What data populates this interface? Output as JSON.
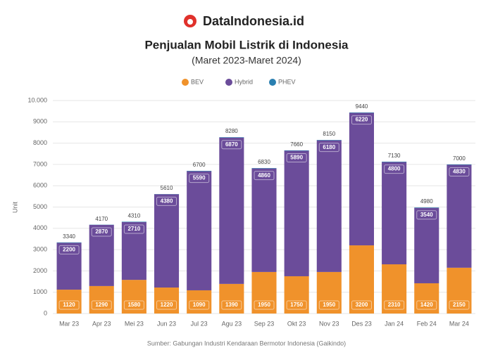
{
  "brand": "DataIndonesia.id",
  "chart_data": {
    "type": "stacked_bar",
    "title": "Penjualan Mobil Listrik di Indonesia",
    "subtitle": "(Maret 2023-Maret 2024)",
    "y_label": "Unit",
    "source": "Sumber: Gabungan Industri Kendaraan Bermotor Indonesia (Gaikindo)",
    "categories": [
      "Mar 23",
      "Apr 23",
      "Mei 23",
      "Jun 23",
      "Jul 23",
      "Agu 23",
      "Sep 23",
      "Okt 23",
      "Nov 23",
      "Des 23",
      "Jan 24",
      "Feb 24",
      "Mar 24"
    ],
    "series": [
      {
        "name": "BEV",
        "color": "#f0922b",
        "values": [
          1120,
          1290,
          1580,
          1220,
          1090,
          1390,
          1950,
          1750,
          1950,
          3200,
          2310,
          1420,
          2150
        ]
      },
      {
        "name": "Hybrid",
        "color": "#6b4c9a",
        "values": [
          2200,
          2870,
          2710,
          4380,
          5590,
          6870,
          4860,
          5890,
          6180,
          6220,
          4800,
          3540,
          4830
        ]
      },
      {
        "name": "PHEV",
        "color": "#2a7fb0",
        "values": [
          20,
          10,
          20,
          10,
          20,
          20,
          20,
          20,
          20,
          20,
          20,
          20,
          20
        ]
      }
    ],
    "totals": [
      3340,
      4170,
      4310,
      5610,
      6700,
      8280,
      6830,
      7660,
      8150,
      9440,
      7130,
      4980,
      7000
    ],
    "ylim": [
      0,
      10000
    ],
    "yticks": [
      0,
      1000,
      2000,
      3000,
      4000,
      5000,
      6000,
      7000,
      8000,
      9000,
      {
        "value": 10000,
        "label": "10.000"
      }
    ],
    "grid": true
  }
}
